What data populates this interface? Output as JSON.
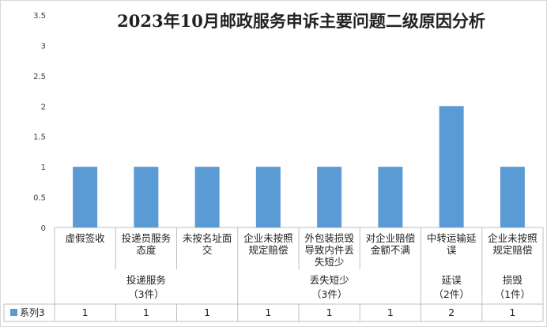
{
  "chart_data": {
    "type": "bar",
    "title": "2023年10月邮政服务申诉主要问题二级原因分析",
    "ylim": [
      0,
      3.5
    ],
    "y_ticks": [
      "0",
      "0.5",
      "1",
      "1.5",
      "2",
      "2.5",
      "3",
      "3.5"
    ],
    "grid": false,
    "categories": [
      [
        "虚假签收"
      ],
      [
        "投递员服务",
        "态度"
      ],
      [
        "未按名址面",
        "交"
      ],
      [
        "企业未按照",
        "规定赔偿"
      ],
      [
        "外包装损毁",
        "导致内件丢",
        "失短少"
      ],
      [
        "对企业赔偿",
        "金额不满"
      ],
      [
        "中转运输延",
        "误"
      ],
      [
        "企业未按照",
        "规定赔偿"
      ]
    ],
    "groups": [
      {
        "label": [
          "投递服务",
          "（3件）"
        ],
        "span": 3
      },
      {
        "label": [
          "丢失短少",
          "（3件）"
        ],
        "span": 3
      },
      {
        "label": [
          "延误",
          "（2件）"
        ],
        "span": 1
      },
      {
        "label": [
          "损毁",
          "（1件）"
        ],
        "span": 1
      }
    ],
    "series": [
      {
        "name": "系列3",
        "values": [
          1,
          1,
          1,
          1,
          1,
          1,
          2,
          1
        ],
        "color": "#5b9bd5"
      }
    ],
    "table_values": [
      "1",
      "1",
      "1",
      "1",
      "1",
      "1",
      "2",
      "1"
    ],
    "legend_placement": "data-table"
  }
}
